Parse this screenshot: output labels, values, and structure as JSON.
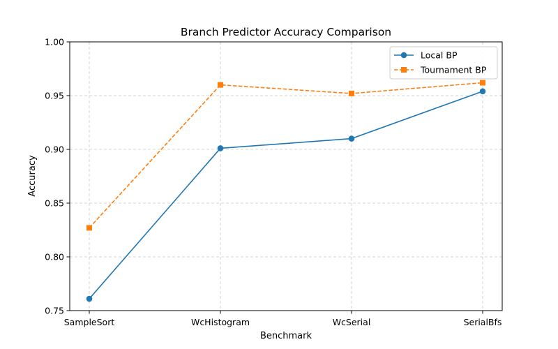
{
  "chart_data": {
    "type": "line",
    "title": "Branch Predictor Accuracy Comparison",
    "xlabel": "Benchmark",
    "ylabel": "Accuracy",
    "categories": [
      "SampleSort",
      "WcHistogram",
      "WcSerial",
      "SerialBfs"
    ],
    "ylim": [
      0.75,
      1.0
    ],
    "yticks": [
      0.75,
      0.8,
      0.85,
      0.9,
      0.95,
      1.0
    ],
    "ytick_labels": [
      "0.75",
      "0.80",
      "0.85",
      "0.90",
      "0.95",
      "1.00"
    ],
    "grid": true,
    "legend_position": "top-right",
    "series": [
      {
        "name": "Local BP",
        "values": [
          0.761,
          0.901,
          0.91,
          0.954
        ],
        "color": "#1f77b4",
        "marker": "circle",
        "linestyle": "solid"
      },
      {
        "name": "Tournament BP",
        "values": [
          0.827,
          0.96,
          0.952,
          0.962
        ],
        "color": "#ff7f0e",
        "marker": "square",
        "linestyle": "dashed"
      }
    ]
  }
}
